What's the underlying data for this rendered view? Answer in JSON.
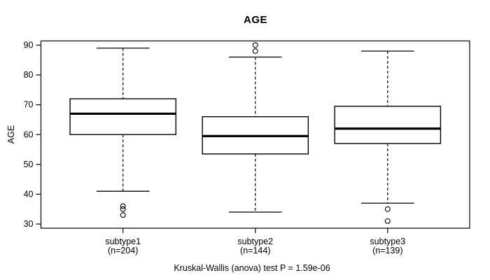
{
  "chart_data": {
    "type": "boxplot",
    "title": "AGE",
    "xlabel": "",
    "ylabel": "AGE",
    "caption": "Kruskal-Wallis (anova) test P = 1.59e-06",
    "y_ticks": [
      30,
      40,
      50,
      60,
      70,
      80,
      90
    ],
    "ylim": [
      28.6,
      91.4
    ],
    "grid": false,
    "legend": "none",
    "categories": [
      {
        "label": "subtype1",
        "n_label": "(n=204)"
      },
      {
        "label": "subtype2",
        "n_label": "(n=144)"
      },
      {
        "label": "subtype3",
        "n_label": "(n=139)"
      }
    ],
    "series": [
      {
        "name": "subtype1",
        "n": 204,
        "whisker_low": 41,
        "q1": 60,
        "median": 67,
        "q3": 72,
        "whisker_high": 89,
        "outliers": [
          36,
          35,
          33
        ]
      },
      {
        "name": "subtype2",
        "n": 144,
        "whisker_low": 34,
        "q1": 53.5,
        "median": 59.5,
        "q3": 66,
        "whisker_high": 86,
        "outliers": [
          88,
          90
        ]
      },
      {
        "name": "subtype3",
        "n": 139,
        "whisker_low": 37,
        "q1": 57,
        "median": 62,
        "q3": 69.5,
        "whisker_high": 88,
        "outliers": [
          35,
          31
        ]
      }
    ],
    "colors": {
      "stroke": "#000000",
      "box_fill": "#ffffff",
      "background": "#ffffff"
    }
  }
}
